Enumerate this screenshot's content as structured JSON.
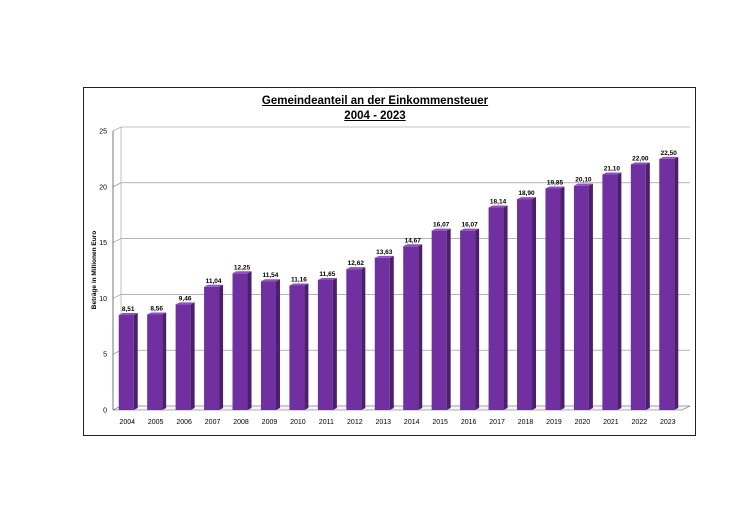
{
  "chart_data": {
    "type": "bar",
    "title": "Gemeindeanteil an der Einkommensteuer",
    "subtitle": "2004 - 2023",
    "ylabel": "Beträge in Millionen Euro",
    "xlabel": "",
    "ylim": [
      0,
      25
    ],
    "yticks": [
      0,
      5,
      10,
      15,
      20,
      25
    ],
    "grid": true,
    "categories": [
      "2004",
      "2005",
      "2006",
      "2007",
      "2008",
      "2009",
      "2010",
      "2011",
      "2012",
      "2013",
      "2014",
      "2015",
      "2016",
      "2017",
      "2018",
      "2019",
      "2020",
      "2021",
      "2022",
      "2023"
    ],
    "values": [
      8.51,
      8.56,
      9.46,
      11.04,
      12.25,
      11.54,
      11.16,
      11.65,
      12.62,
      13.63,
      14.67,
      16.07,
      16.07,
      18.14,
      18.9,
      19.85,
      20.1,
      21.1,
      22.0,
      22.5
    ],
    "value_labels": [
      "8,51",
      "8,56",
      "9,46",
      "11,04",
      "12,25",
      "11,54",
      "11,16",
      "11,65",
      "12,62",
      "13,63",
      "14,67",
      "16,07",
      "16,07",
      "18,14",
      "18,90",
      "19,85",
      "20,10",
      "21,10",
      "22,00",
      "22,50"
    ],
    "colors": {
      "bar_front": "#7030a0",
      "bar_side": "#4b1f6e",
      "bar_top": "#8f52bf"
    }
  }
}
